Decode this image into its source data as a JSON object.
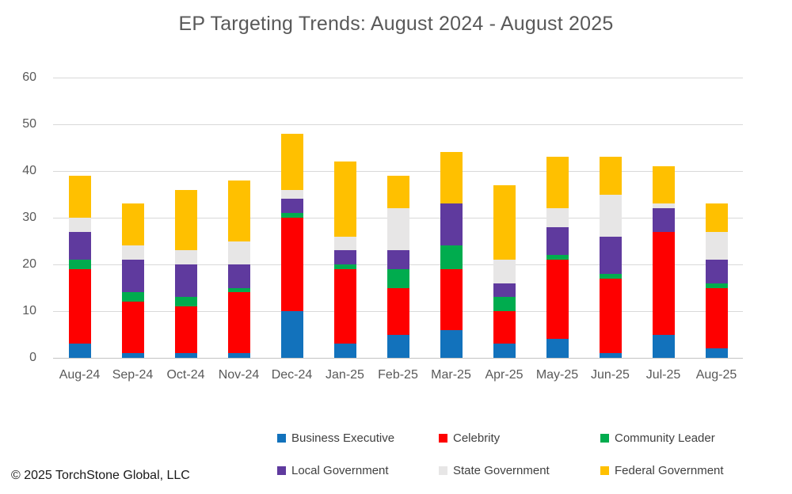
{
  "chart_data": {
    "type": "bar",
    "stacked": true,
    "title": "EP Targeting Trends: August 2024 - August 2025",
    "categories": [
      "Aug-24",
      "Sep-24",
      "Oct-24",
      "Nov-24",
      "Dec-24",
      "Jan-25",
      "Feb-25",
      "Mar-25",
      "Apr-25",
      "May-25",
      "Jun-25",
      "Jul-25",
      "Aug-25"
    ],
    "series": [
      {
        "name": "Business Executive",
        "color": "#1272bc",
        "values": [
          3,
          1,
          1,
          1,
          10,
          3,
          5,
          6,
          3,
          4,
          1,
          5,
          2
        ]
      },
      {
        "name": "Celebrity",
        "color": "#fe0000",
        "values": [
          16,
          11,
          10,
          13,
          20,
          16,
          10,
          13,
          7,
          17,
          16,
          22,
          13
        ]
      },
      {
        "name": "Community Leader",
        "color": "#00ac4e",
        "values": [
          2,
          2,
          2,
          1,
          1,
          1,
          4,
          5,
          3,
          1,
          1,
          0,
          1
        ]
      },
      {
        "name": "Local Government",
        "color": "#5f3a9e",
        "values": [
          6,
          7,
          7,
          5,
          3,
          3,
          4,
          9,
          3,
          6,
          8,
          5,
          5
        ]
      },
      {
        "name": "State Government",
        "color": "#e7e6e6",
        "values": [
          3,
          3,
          3,
          5,
          2,
          3,
          9,
          0,
          5,
          4,
          9,
          1,
          6
        ]
      },
      {
        "name": "Federal Government",
        "color": "#ffc000",
        "values": [
          9,
          9,
          13,
          13,
          12,
          16,
          7,
          11,
          16,
          11,
          8,
          8,
          6
        ]
      }
    ],
    "totals": [
      39,
      33,
      36,
      38,
      48,
      42,
      39,
      44,
      37,
      43,
      43,
      41,
      33
    ],
    "ylim": [
      0,
      60
    ],
    "yticks": [
      0,
      10,
      20,
      30,
      40,
      50,
      60
    ],
    "grid": true,
    "legend_position": "bottom"
  },
  "footer": {
    "copyright": "© 2025 TorchStone Global, LLC"
  },
  "colors": {
    "gridline": "#d9d9d9",
    "axis_line": "#c3c3c3",
    "title_text": "#595959",
    "axis_text": "#595959",
    "legend_text": "#404040"
  }
}
